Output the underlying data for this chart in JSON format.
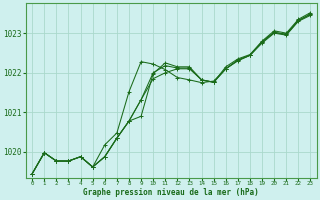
{
  "xlabel": "Graphe pression niveau de la mer (hPa)",
  "background_color": "#cff0ee",
  "plot_bg_color": "#cff0ee",
  "grid_color": "#aad9cc",
  "line_color": "#1a6b1a",
  "text_color": "#1a6b1a",
  "border_color": "#4a9a4a",
  "xlim": [
    -0.5,
    23.5
  ],
  "ylim": [
    1019.35,
    1023.75
  ],
  "yticks": [
    1020,
    1021,
    1022,
    1023
  ],
  "xticks": [
    0,
    1,
    2,
    3,
    4,
    5,
    6,
    7,
    8,
    9,
    10,
    11,
    12,
    13,
    14,
    15,
    16,
    17,
    18,
    19,
    20,
    21,
    22,
    23
  ],
  "series": [
    [
      1019.45,
      1019.98,
      1019.77,
      1019.77,
      1019.88,
      1019.62,
      1019.88,
      1020.35,
      1020.78,
      1021.32,
      1021.85,
      1022.0,
      1022.1,
      1022.1,
      1021.82,
      1021.76,
      1022.1,
      1022.32,
      1022.44,
      1022.78,
      1023.02,
      1022.97,
      1023.32,
      1023.48
    ],
    [
      1019.45,
      1019.98,
      1019.77,
      1019.77,
      1019.88,
      1019.62,
      1020.18,
      1020.48,
      1021.52,
      1022.28,
      1022.22,
      1022.08,
      1021.88,
      1021.82,
      1021.75,
      1021.79,
      1022.1,
      1022.3,
      1022.44,
      1022.75,
      1023.0,
      1022.95,
      1023.3,
      1023.45
    ],
    [
      1019.45,
      1019.98,
      1019.77,
      1019.77,
      1019.88,
      1019.62,
      1019.88,
      1020.35,
      1020.78,
      1021.32,
      1022.0,
      1022.18,
      1022.12,
      1022.12,
      1021.82,
      1021.76,
      1022.1,
      1022.32,
      1022.44,
      1022.78,
      1023.02,
      1022.97,
      1023.32,
      1023.48
    ],
    [
      1019.45,
      1019.98,
      1019.77,
      1019.77,
      1019.88,
      1019.62,
      1019.88,
      1020.35,
      1020.78,
      1020.9,
      1021.98,
      1022.25,
      1022.15,
      1022.15,
      1021.82,
      1021.76,
      1022.15,
      1022.35,
      1022.46,
      1022.8,
      1023.06,
      1023.0,
      1023.35,
      1023.52
    ]
  ]
}
